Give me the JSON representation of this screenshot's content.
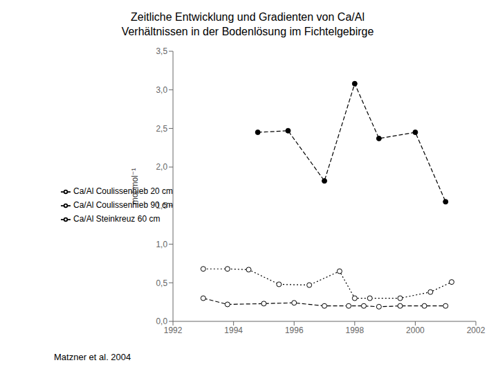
{
  "chart_data": {
    "type": "line",
    "title": "Zeitliche Entwicklung und Gradienten von Ca/Al\nVerhältnissen in der Bodenlösung im Fichtelgebirge",
    "y_label": "mol mol⁻¹",
    "annotations": [
      "Matzner et al. 2004"
    ],
    "xlim": [
      1992,
      2002
    ],
    "xticks": [
      1992,
      1994,
      1996,
      1998,
      2000,
      2002
    ],
    "ylim": [
      0.0,
      3.5
    ],
    "yticks": [
      {
        "value": 0.0,
        "label": "0,0"
      },
      {
        "value": 0.5,
        "label": "0,5"
      },
      {
        "value": 1.0,
        "label": "1,0"
      },
      {
        "value": 1.5,
        "label": "1,5"
      },
      {
        "value": 2.0,
        "label": "2,0"
      },
      {
        "value": 2.5,
        "label": "2,5"
      },
      {
        "value": 3.0,
        "label": "3,0"
      },
      {
        "value": 3.5,
        "label": "3,5"
      }
    ],
    "grid": false,
    "legend": "left",
    "series": [
      {
        "name": "Ca/Al Steinkreuz 60 cm",
        "color": "#000000",
        "marker": "filled",
        "line_style": "dashed",
        "x": [
          1994.8,
          1995.8,
          1997.0,
          1998.0,
          1998.8,
          2000.0,
          2001.0
        ],
        "values": [
          2.45,
          2.47,
          1.82,
          3.08,
          2.37,
          2.45,
          1.55
        ]
      },
      {
        "name": "Ca/Al Coulissenhieb 20 cm",
        "color": "#000000",
        "marker": "open",
        "line_style": "dashed",
        "x": [
          1993.0,
          1993.8,
          1995.0,
          1996.0,
          1997.0,
          1997.8,
          1998.3,
          1998.8,
          1999.5,
          2000.3,
          2001.0
        ],
        "values": [
          0.3,
          0.22,
          0.23,
          0.24,
          0.2,
          0.2,
          0.2,
          0.19,
          0.2,
          0.2,
          0.2
        ]
      },
      {
        "name": "Ca/Al Coulissenhieb 90 cm",
        "color": "#000000",
        "marker": "open",
        "line_style": "dotted",
        "x": [
          1993.0,
          1993.8,
          1994.5,
          1995.5,
          1996.5,
          1997.5,
          1998.0,
          1998.5,
          1999.5,
          2000.5,
          2001.2
        ],
        "values": [
          0.68,
          0.68,
          0.67,
          0.48,
          0.47,
          0.65,
          0.3,
          0.3,
          0.3,
          0.38,
          0.51
        ]
      }
    ]
  }
}
